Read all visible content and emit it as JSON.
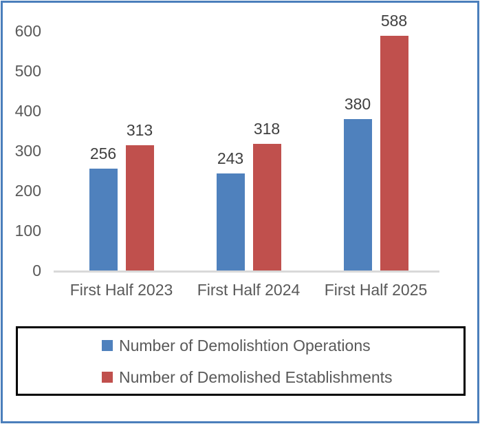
{
  "chart_data": {
    "type": "bar",
    "categories": [
      "First Half 2023",
      "First Half 2024",
      "First Half 2025"
    ],
    "series": [
      {
        "name": "Number of Demolishtion Operations",
        "color": "#4F81BD",
        "values": [
          256,
          243,
          380
        ]
      },
      {
        "name": "Number of Demolished Establishments",
        "color": "#C0504D",
        "values": [
          313,
          318,
          588
        ]
      }
    ],
    "title": "",
    "xlabel": "",
    "ylabel": "",
    "ylim": [
      0,
      600
    ],
    "yticks": [
      "0",
      "100",
      "200",
      "300",
      "400",
      "500",
      "600"
    ],
    "grid": false,
    "data_labels": true,
    "legend_position": "bottom-box"
  },
  "colors": {
    "frame_border": "#4A7EBB",
    "axis_line": "#D9D9D9",
    "tick_label": "#595959",
    "value_label": "#404040",
    "legend_border": "#000000",
    "background": "#FFFFFF"
  }
}
